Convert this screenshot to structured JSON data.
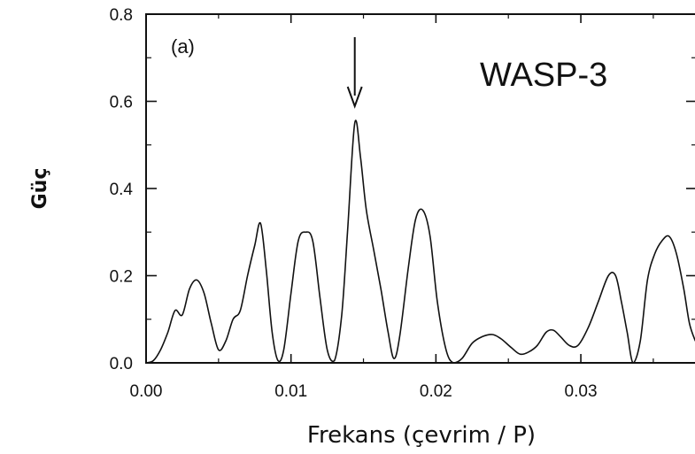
{
  "chart_data": {
    "type": "line",
    "panel_label": "(a)",
    "annotation": "WASP-3",
    "xlabel": "Frekans (çevrim / P)",
    "ylabel": "Güç",
    "xlim": [
      0,
      0.038
    ],
    "ylim": [
      0,
      0.8
    ],
    "xticks": [
      {
        "value": 0.0,
        "label": "0.00"
      },
      {
        "value": 0.01,
        "label": "0.01"
      },
      {
        "value": 0.02,
        "label": "0.02"
      },
      {
        "value": 0.03,
        "label": "0.03"
      }
    ],
    "yticks": [
      {
        "value": 0.0,
        "label": "0.0"
      },
      {
        "value": 0.2,
        "label": "0.2"
      },
      {
        "value": 0.4,
        "label": "0.4"
      },
      {
        "value": 0.6,
        "label": "0.6"
      },
      {
        "value": 0.8,
        "label": "0.8"
      }
    ],
    "arrow_at_x": 0.0144,
    "grid": false,
    "series": [
      {
        "x": [
          0.0,
          0.0005,
          0.001,
          0.0015,
          0.002,
          0.0025,
          0.003,
          0.0035,
          0.004,
          0.0045,
          0.005,
          0.0055,
          0.006,
          0.0065,
          0.007,
          0.0075,
          0.0079,
          0.0083,
          0.0087,
          0.0091,
          0.0095,
          0.01,
          0.0105,
          0.011,
          0.0115,
          0.012,
          0.0125,
          0.013,
          0.0135,
          0.0139,
          0.0144,
          0.0148,
          0.0152,
          0.0157,
          0.0162,
          0.0167,
          0.0171,
          0.0175,
          0.0181,
          0.0186,
          0.0191,
          0.0196,
          0.0201,
          0.0207,
          0.0212,
          0.0218,
          0.0225,
          0.0232,
          0.0239,
          0.0245,
          0.0252,
          0.0258,
          0.0264,
          0.027,
          0.0276,
          0.0281,
          0.0286,
          0.0292,
          0.0298,
          0.0305,
          0.0312,
          0.0319,
          0.0324,
          0.0328,
          0.0332,
          0.0336,
          0.0341,
          0.0346,
          0.0351,
          0.0356,
          0.0361,
          0.0366,
          0.0371,
          0.0375,
          0.0379
        ],
        "y": [
          0.0,
          0.005,
          0.03,
          0.07,
          0.12,
          0.11,
          0.17,
          0.19,
          0.16,
          0.09,
          0.03,
          0.05,
          0.1,
          0.12,
          0.2,
          0.27,
          0.32,
          0.21,
          0.07,
          0.005,
          0.03,
          0.16,
          0.28,
          0.3,
          0.28,
          0.15,
          0.03,
          0.005,
          0.11,
          0.3,
          0.55,
          0.47,
          0.35,
          0.26,
          0.17,
          0.07,
          0.01,
          0.06,
          0.22,
          0.33,
          0.35,
          0.29,
          0.14,
          0.03,
          0.0,
          0.01,
          0.045,
          0.06,
          0.065,
          0.055,
          0.035,
          0.02,
          0.025,
          0.04,
          0.07,
          0.075,
          0.06,
          0.04,
          0.04,
          0.08,
          0.14,
          0.2,
          0.2,
          0.14,
          0.07,
          0.0,
          0.05,
          0.19,
          0.25,
          0.28,
          0.29,
          0.25,
          0.17,
          0.09,
          0.05
        ]
      }
    ]
  }
}
